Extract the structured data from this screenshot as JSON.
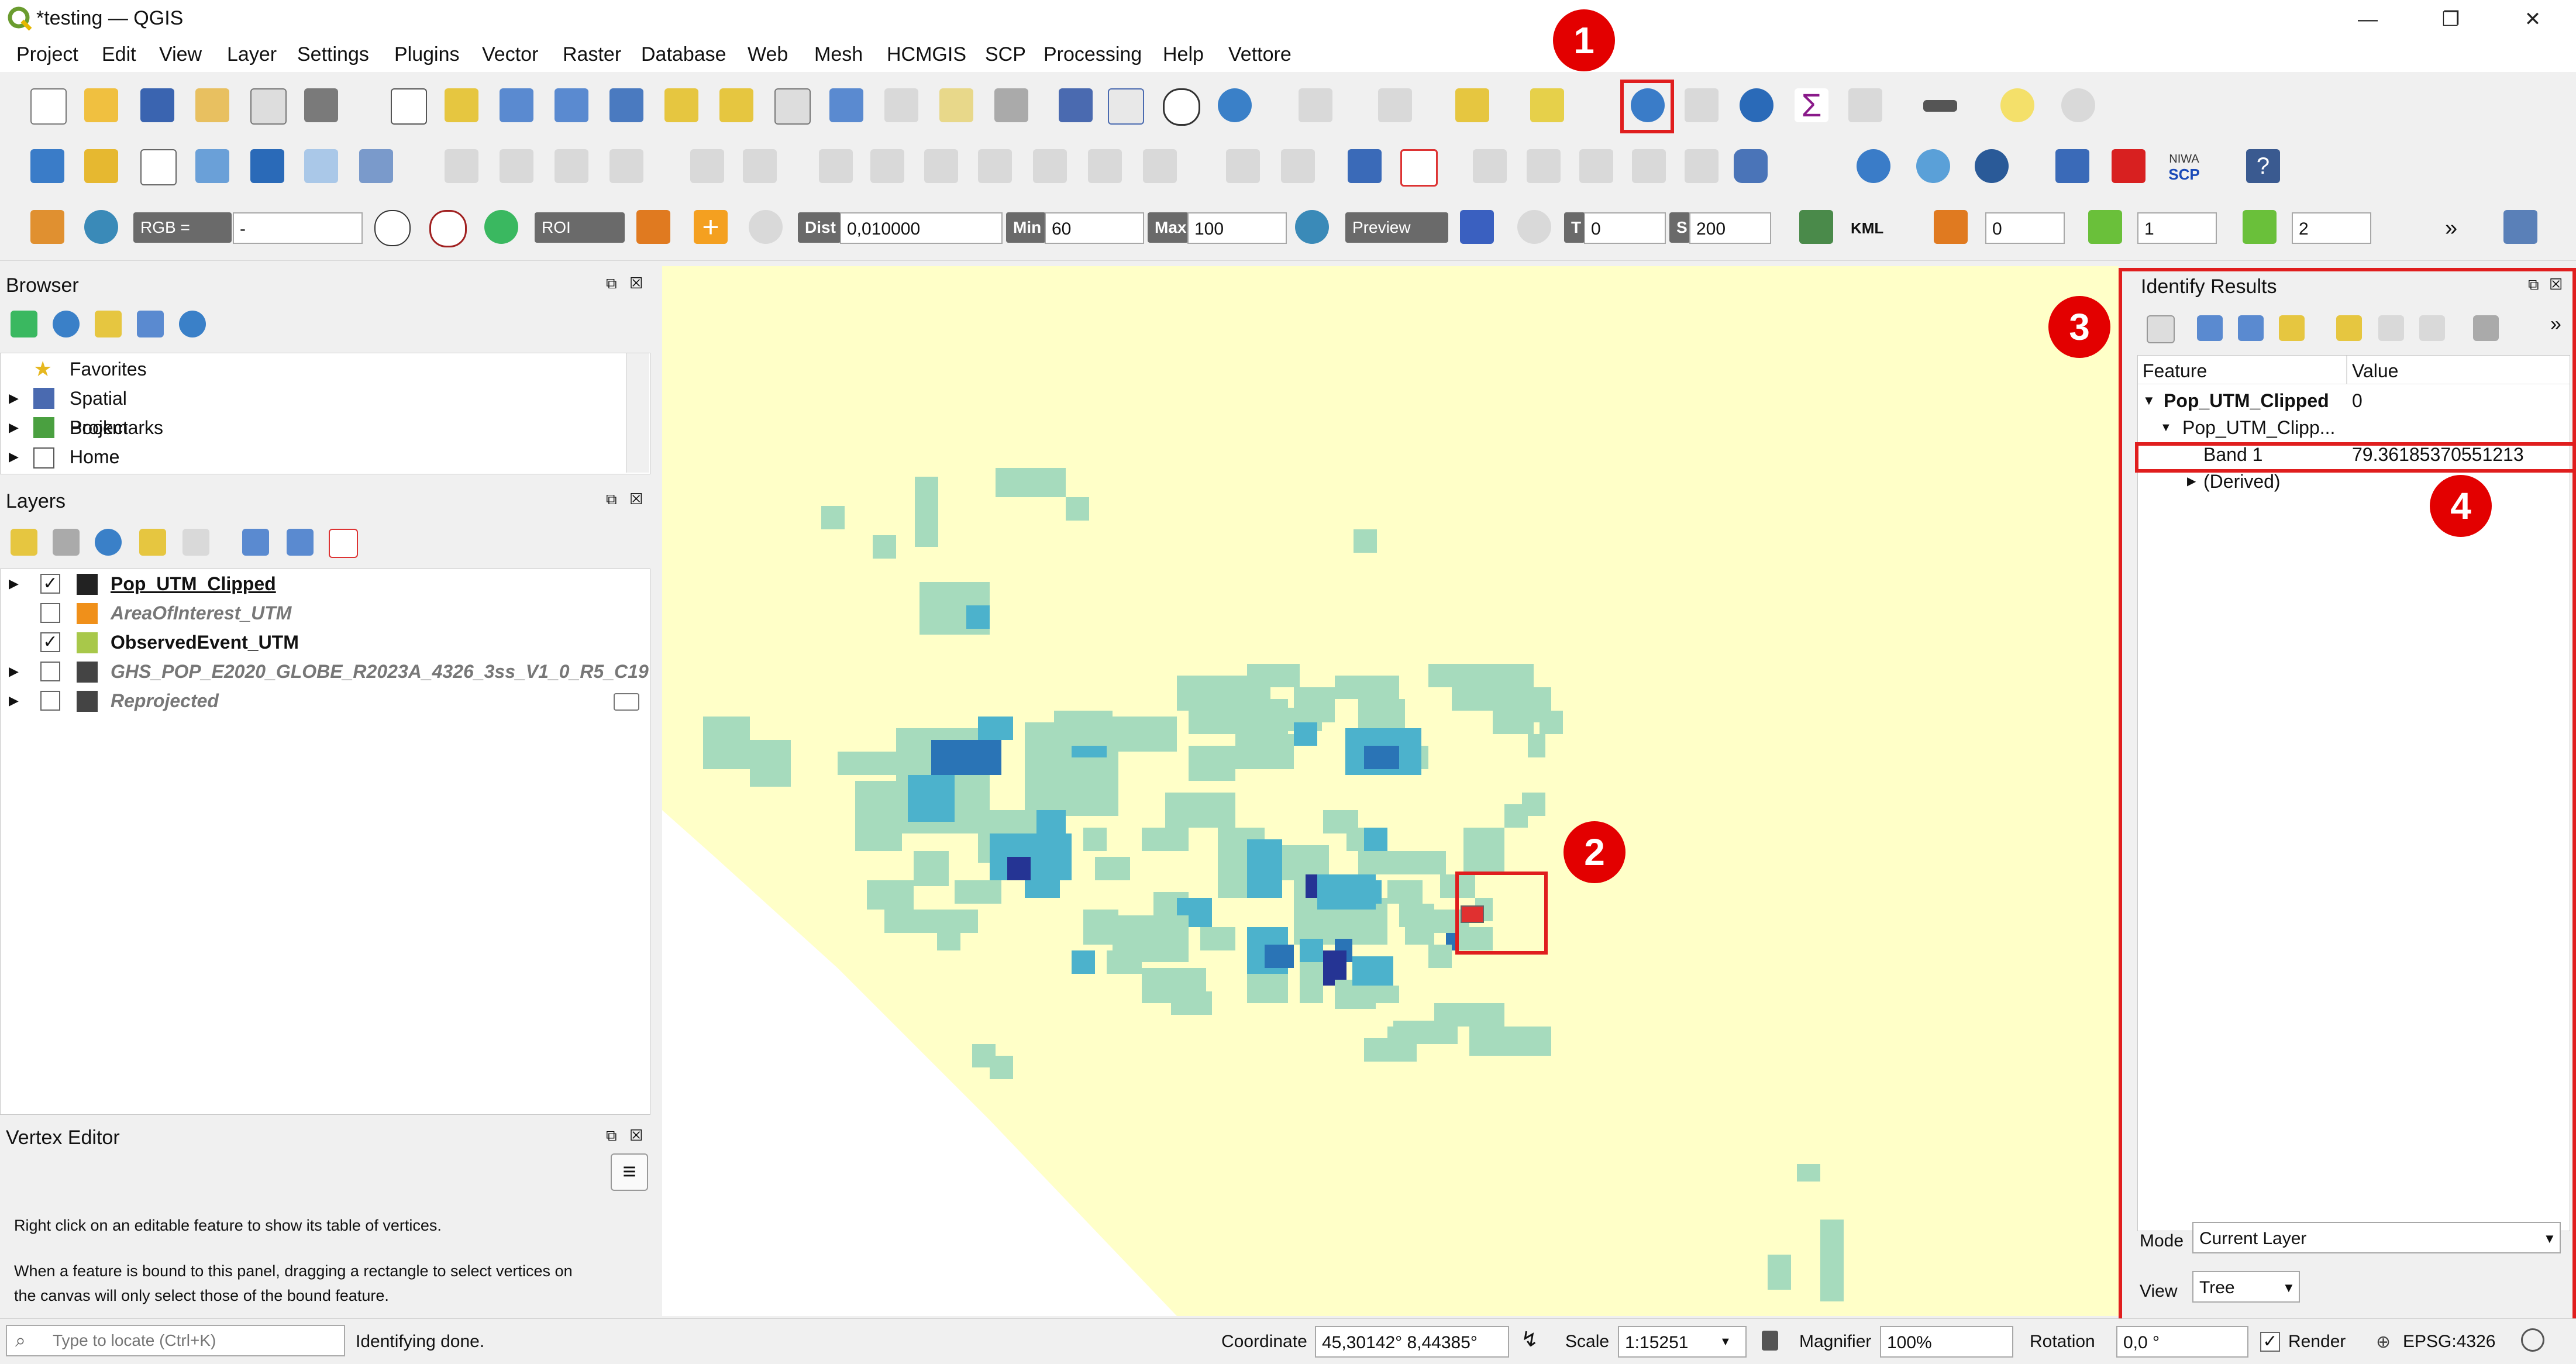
{
  "window": {
    "title": "*testing — QGIS",
    "minimize": "—",
    "maximize": "❐",
    "close": "✕"
  },
  "menu": [
    "Project",
    "Edit",
    "View",
    "Layer",
    "Settings",
    "Plugins",
    "Vector",
    "Raster",
    "Database",
    "Web",
    "Mesh",
    "HCMGIS",
    "SCP",
    "Processing",
    "Help",
    "Vettore"
  ],
  "scp_toolbar": {
    "rgb_label": "RGB =",
    "rgb_value": "-",
    "roi_label": "ROI",
    "dist_label": "Dist",
    "dist_value": "0,010000",
    "min_label": "Min",
    "min_value": "60",
    "max_label": "Max",
    "max_value": "100",
    "preview_label": "Preview",
    "t_label": "T",
    "t_value": "0",
    "s_label": "S",
    "s_value": "200",
    "kml_label": "KML",
    "field1": "0",
    "field2": "1",
    "field3": "2",
    "more": "»"
  },
  "toolbar2": {
    "niwa": "NIWA",
    "scp": "SCP",
    "help": "?"
  },
  "browser": {
    "title": "Browser",
    "items": [
      {
        "label": "Favorites"
      },
      {
        "label": "Spatial Bookmarks"
      },
      {
        "label": "Project Home"
      },
      {
        "label": "Home"
      }
    ]
  },
  "layers": {
    "title": "Layers",
    "items": [
      {
        "label": "Pop_UTM_Clipped",
        "checked": true
      },
      {
        "label": "AreaOfInterest_UTM",
        "checked": false
      },
      {
        "label": "ObservedEvent_UTM",
        "checked": true
      },
      {
        "label": "GHS_POP_E2020_GLOBE_R2023A_4326_3ss_V1_0_R5_C19",
        "checked": false
      },
      {
        "label": "Reprojected",
        "checked": false
      }
    ]
  },
  "vertex_editor": {
    "title": "Vertex Editor",
    "text1": "Right click on an editable feature to show its table of vertices.",
    "text2": "When a feature is bound to this panel, dragging a rectangle to select vertices on",
    "text3": "the canvas will only select those of the bound feature."
  },
  "identify": {
    "title": "Identify Results",
    "col_feature": "Feature",
    "col_value": "Value",
    "layer_name": "Pop_UTM_Clipped",
    "layer_value": "0",
    "sub_name": "Pop_UTM_Clipp...",
    "band_name": "Band 1",
    "band_value": "79.36185370551213",
    "derived": "(Derived)",
    "mode_label": "Mode",
    "mode_value": "Current Layer",
    "view_label": "View",
    "view_value": "Tree"
  },
  "annotations": [
    "1",
    "2",
    "3",
    "4"
  ],
  "status": {
    "locate_placeholder": "Type to locate (Ctrl+K)",
    "message": "Identifying done.",
    "coordinate_label": "Coordinate",
    "coordinate_value": "45,30142° 8,44385°",
    "scale_label": "Scale",
    "scale_value": "1:15251",
    "magnifier_label": "Magnifier",
    "magnifier_value": "100%",
    "rotation_label": "Rotation",
    "rotation_value": "0,0 °",
    "render_label": "Render",
    "crs": "EPSG:4326"
  },
  "colors": {
    "map_bg": "#ffffc8",
    "light_cell": "#a6dbbd",
    "mid_cell": "#4cb2cc",
    "dark_cell": "#2a74b6",
    "darkest_cell": "#253494",
    "accent_red": "#e30000"
  }
}
